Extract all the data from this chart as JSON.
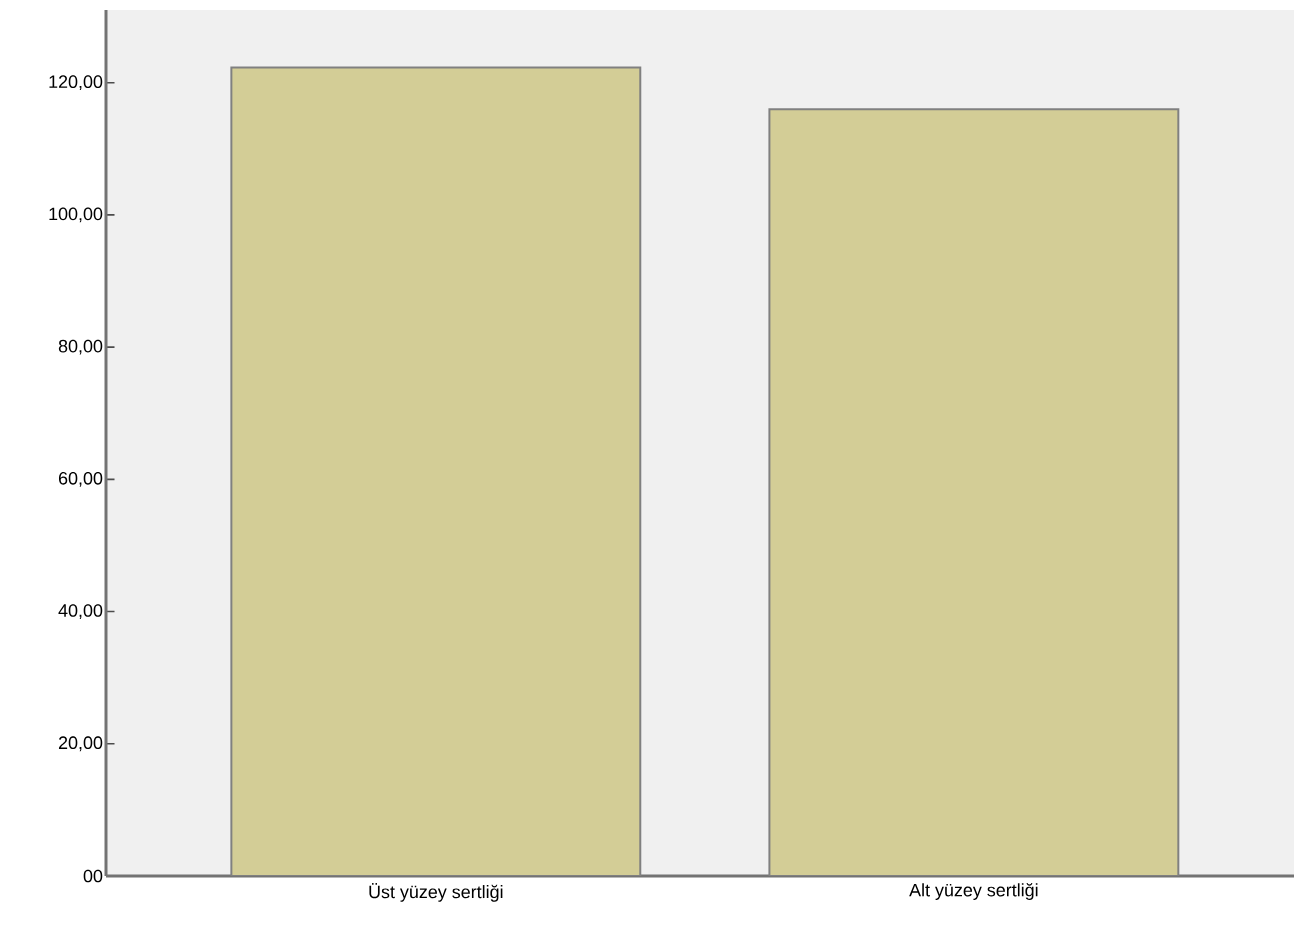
{
  "chart_data": {
    "type": "bar",
    "categories": [
      "Üst yüzey sertliği",
      "Alt yüzey sertliği"
    ],
    "values": [
      122.3,
      116.0
    ],
    "color": "#d3cd96",
    "ylim": [
      0,
      131
    ],
    "yticks": [
      {
        "value": 0,
        "label": "00"
      },
      {
        "value": 20,
        "label": "20,00"
      },
      {
        "value": 40,
        "label": "40,00"
      },
      {
        "value": 60,
        "label": "60,00"
      },
      {
        "value": 80,
        "label": "80,00"
      },
      {
        "value": 100,
        "label": "100,00"
      },
      {
        "value": 120,
        "label": "120,00"
      }
    ],
    "grid": false
  }
}
